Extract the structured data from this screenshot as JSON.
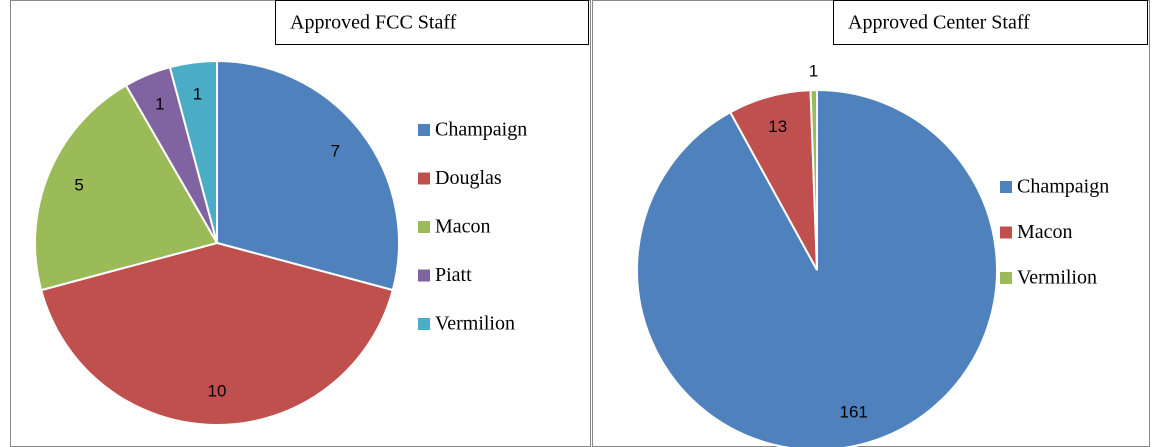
{
  "chart_data": [
    {
      "type": "pie",
      "title": "Approved FCC Staff",
      "categories": [
        "Champaign",
        "Douglas",
        "Macon",
        "Piatt",
        "Vermilion"
      ],
      "values": [
        7,
        10,
        5,
        1,
        1
      ],
      "colors": [
        "#4f81bd",
        "#c0504d",
        "#9bbb59",
        "#8064a2",
        "#4bacc6"
      ]
    },
    {
      "type": "pie",
      "title": "Approved Center Staff",
      "categories": [
        "Champaign",
        "Macon",
        "Vermilion"
      ],
      "values": [
        161,
        13,
        1
      ],
      "colors": [
        "#4f81bd",
        "#c0504d",
        "#9bbb59"
      ]
    }
  ]
}
